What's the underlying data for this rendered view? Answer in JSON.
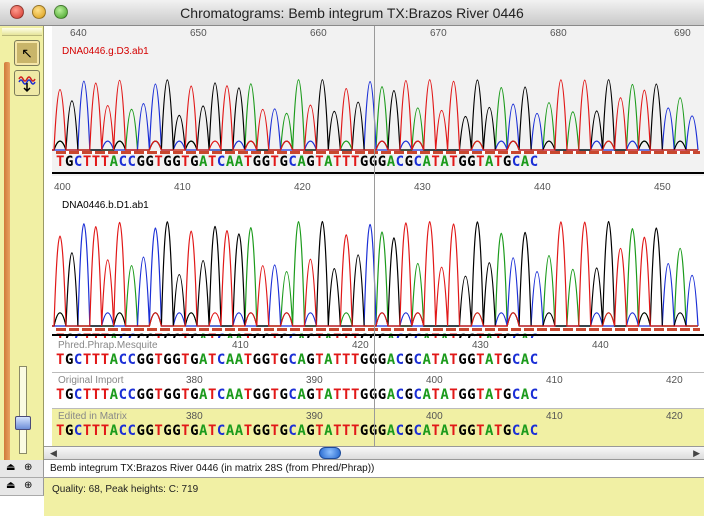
{
  "window": {
    "title": "Chromatograms: Bemb integrum TX:Brazos River 0446"
  },
  "track1": {
    "file": "DNA0446.g.D3.ab1",
    "file_color": "#d40000",
    "ticks": [
      "640",
      "650",
      "660",
      "670",
      "680",
      "690"
    ],
    "sequence": "TGCTTTACCGGTGGTGATCAATGGTGCAGTATTTGGGACGCATATGGTATGCAC"
  },
  "track2": {
    "file": "DNA0446.b.D1.ab1",
    "ticks": [
      "400",
      "410",
      "420",
      "430",
      "440",
      "450"
    ],
    "sequence": "TGCTTTACCGGTGGTGATCAATGGTGCAGTATTTGGGACGCATATGGTATGCAC"
  },
  "row_phred": {
    "label": "Phred.Phrap.Mesquite",
    "ticks": [
      "410",
      "420",
      "430",
      "440"
    ],
    "sequence": "TGCTTTACCGGTGGTGATCAATGGTGCAGTATTTGGGACGCATATGGTATGCAC"
  },
  "row_original": {
    "label": "Original Import",
    "ticks": [
      "380",
      "390",
      "400",
      "410",
      "420"
    ],
    "sequence": "TGCTTTACCGGTGGTGATCAATGGTGCAGTATTTGGGACGCATATGGTATGCAC"
  },
  "row_edited": {
    "label": "Edited in Matrix",
    "ticks": [
      "380",
      "390",
      "400",
      "410",
      "420"
    ],
    "sequence": "TGCTTTACCGGTGGTGATCAATGGTGCAGTATTTGGGACGCATATGGTATGCAC"
  },
  "status": {
    "taxon_line": "Bemb integrum TX:Brazos River 0446 (in matrix 28S (from Phred/Phrap))",
    "quality_line": "Quality: 68,   Peak heights: C: 719"
  },
  "colors": {
    "A": "#1c9b1c",
    "C": "#1b2fd6",
    "G": "#000000",
    "T": "#e11818",
    "toolbar_bg": "#f1f0a4"
  },
  "icons": {
    "tool1": "arrow-pointer-icon",
    "tool2": "trace-adjust-icon"
  }
}
